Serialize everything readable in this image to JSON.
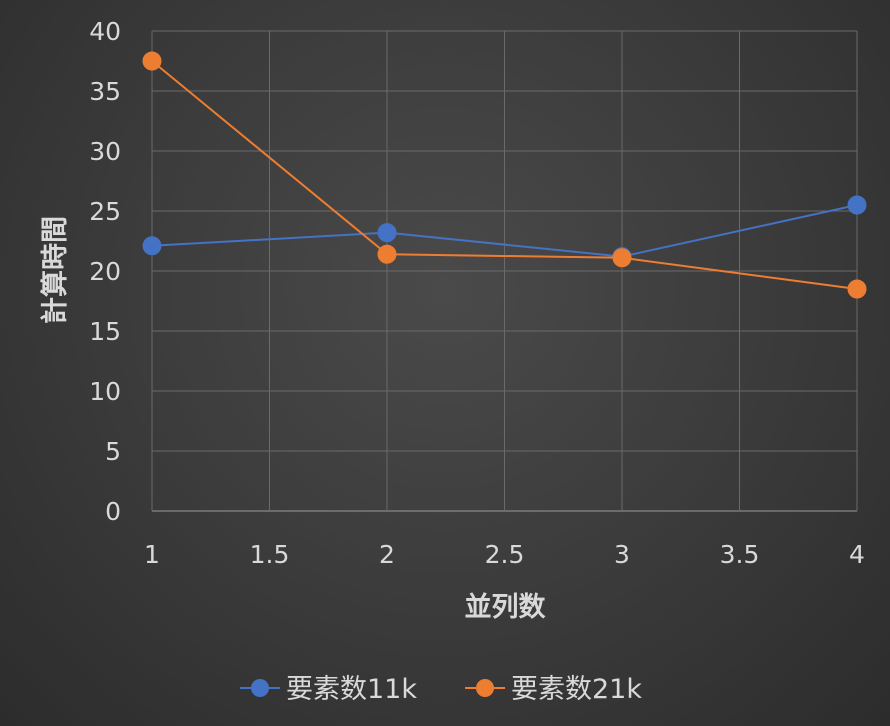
{
  "chart_data": {
    "type": "scatter",
    "xlabel": "並列数",
    "ylabel": "計算時間",
    "xlim": [
      1,
      4
    ],
    "ylim": [
      0,
      40
    ],
    "x_ticks": [
      "1",
      "1.5",
      "2",
      "2.5",
      "3",
      "3.5",
      "4"
    ],
    "y_ticks": [
      "0",
      "5",
      "10",
      "15",
      "20",
      "25",
      "30",
      "35",
      "40"
    ],
    "grid": true,
    "legend_position": "bottom",
    "series": [
      {
        "name": "要素数11k",
        "color": "#4472c4",
        "x": [
          1,
          2,
          3,
          4
        ],
        "y": [
          22.1,
          23.2,
          21.2,
          25.5
        ]
      },
      {
        "name": "要素数21k",
        "color": "#ed7d31",
        "x": [
          1,
          2,
          3,
          4
        ],
        "y": [
          37.5,
          21.4,
          21.1,
          18.5
        ]
      }
    ]
  }
}
